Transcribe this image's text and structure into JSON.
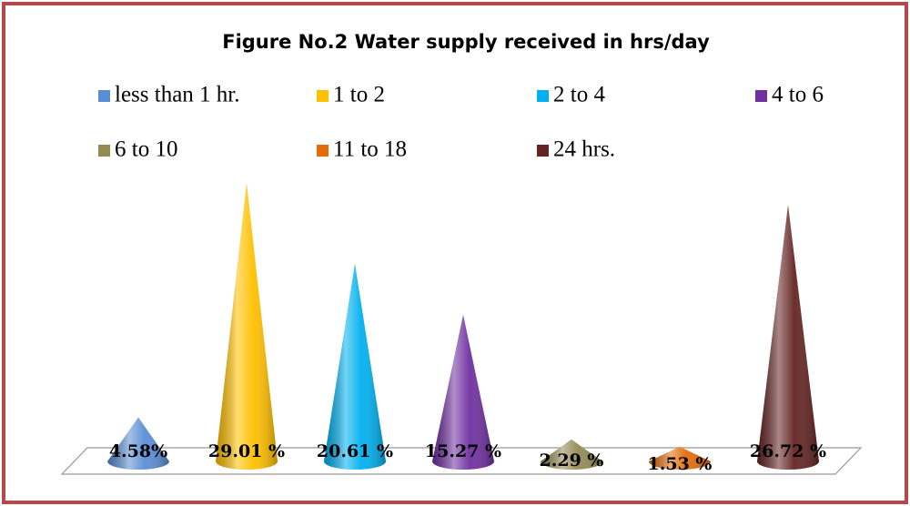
{
  "chart_data": {
    "type": "cone",
    "title": "Figure No.2 Water supply  received in hrs/day",
    "categories": [
      "less than 1 hr.",
      "1 to 2",
      "2 to 4",
      "4 to 6",
      "6 to 10",
      "11 to 18",
      "24 hrs."
    ],
    "values": [
      4.58,
      29.01,
      20.61,
      15.27,
      2.29,
      1.53,
      26.72
    ],
    "value_labels": [
      "4.58%",
      "29.01 %",
      "20.61 %",
      "15.27 %",
      "2.29 %",
      "1.53 %",
      "26.72 %"
    ],
    "colors": [
      "#5a8ed4",
      "#ffc000",
      "#00b0f0",
      "#7030a0",
      "#948a54",
      "#e46c0a",
      "#632523"
    ],
    "legend": "top"
  }
}
